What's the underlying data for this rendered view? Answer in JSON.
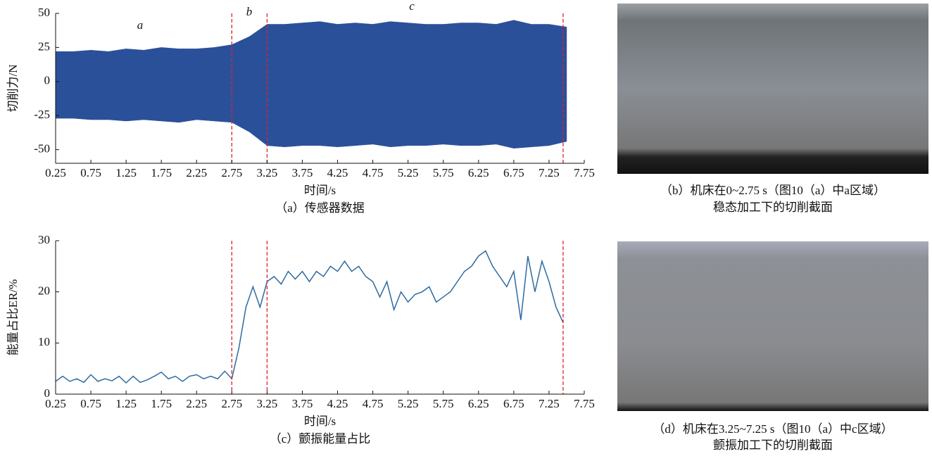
{
  "chart_data": [
    {
      "type": "area",
      "ylabel": "切削力/N",
      "xlabel": "时间/s",
      "caption": "（a）传感器数据",
      "annotations": [
        "a",
        "b",
        "c"
      ],
      "x": [
        0.25,
        0.5,
        0.75,
        1,
        1.25,
        1.5,
        1.75,
        2,
        2.25,
        2.5,
        2.75,
        3,
        3.25,
        3.5,
        3.75,
        4,
        4.25,
        4.5,
        4.75,
        5,
        5.25,
        5.5,
        5.75,
        6,
        6.25,
        6.5,
        6.75,
        7,
        7.25,
        7.5
      ],
      "series": [
        {
          "color": "#2b509a",
          "values": [
            22,
            22,
            23,
            22,
            24,
            23,
            25,
            24,
            24,
            25,
            27,
            33,
            42,
            42,
            43,
            44,
            42,
            43,
            42,
            44,
            43,
            42,
            42,
            43,
            43,
            42,
            45,
            42,
            42,
            40
          ]
        },
        {
          "color": "#2b509a",
          "values": [
            -27,
            -27,
            -28,
            -28,
            -29,
            -28,
            -29,
            -30,
            -28,
            -29,
            -30,
            -37,
            -47,
            -48,
            -47,
            -47,
            -48,
            -47,
            -46,
            -48,
            -47,
            -47,
            -46,
            -47,
            -47,
            -46,
            -49,
            -48,
            -47,
            -44
          ]
        }
      ],
      "vlines": [
        2.75,
        3.25,
        7.45
      ],
      "vline_color": "#e0202a",
      "xlim": [
        0.25,
        7.75
      ],
      "xticks": [
        0.25,
        0.75,
        1.25,
        1.75,
        2.25,
        2.75,
        3.25,
        3.75,
        4.25,
        4.75,
        5.25,
        5.75,
        6.25,
        6.75,
        7.25,
        7.75
      ],
      "ylim": [
        -60,
        50
      ],
      "yticks": [
        -50,
        -25,
        0,
        25,
        50
      ]
    },
    {
      "type": "line",
      "ylabel": "能量占比ER/%",
      "xlabel": "时间/s",
      "caption": "（c）颤振能量占比",
      "x": [
        0.25,
        0.35,
        0.45,
        0.55,
        0.65,
        0.75,
        0.85,
        0.95,
        1.05,
        1.15,
        1.25,
        1.35,
        1.45,
        1.55,
        1.65,
        1.75,
        1.85,
        1.95,
        2.05,
        2.15,
        2.25,
        2.35,
        2.45,
        2.55,
        2.65,
        2.75,
        2.85,
        2.95,
        3.05,
        3.15,
        3.25,
        3.35,
        3.45,
        3.55,
        3.65,
        3.75,
        3.85,
        3.95,
        4.05,
        4.15,
        4.25,
        4.35,
        4.45,
        4.55,
        4.65,
        4.75,
        4.85,
        4.95,
        5.05,
        5.15,
        5.25,
        5.35,
        5.45,
        5.55,
        5.65,
        5.75,
        5.85,
        5.95,
        6.05,
        6.15,
        6.25,
        6.35,
        6.45,
        6.55,
        6.65,
        6.75,
        6.85,
        6.95,
        7.05,
        7.15,
        7.25,
        7.35,
        7.45
      ],
      "series": [
        {
          "color": "#2e6aa0",
          "values": [
            2.5,
            3.5,
            2.5,
            3,
            2.3,
            3.8,
            2.5,
            3,
            2.6,
            3.5,
            2.2,
            3.5,
            2.3,
            2.8,
            3.5,
            4.3,
            3,
            3.5,
            2.5,
            3.5,
            3.8,
            3,
            3.5,
            3,
            4.5,
            3,
            9,
            17,
            21,
            17,
            22,
            23,
            21.5,
            24,
            22.5,
            24,
            22,
            24,
            23,
            25,
            24,
            26,
            24,
            25,
            23,
            22,
            19,
            22,
            16.5,
            20,
            18,
            19.5,
            20,
            21,
            18,
            19,
            20,
            22,
            24,
            25,
            27,
            28,
            25,
            23,
            21,
            24,
            14.5,
            27,
            20,
            26,
            22,
            17,
            14
          ]
        }
      ],
      "vlines": [
        2.75,
        3.25,
        7.45
      ],
      "vline_color": "#e0202a",
      "xlim": [
        0.25,
        7.75
      ],
      "xticks": [
        0.25,
        0.75,
        1.25,
        1.75,
        2.25,
        2.75,
        3.25,
        3.75,
        4.25,
        4.75,
        5.25,
        5.75,
        6.25,
        6.75,
        7.25,
        7.75
      ],
      "ylim": [
        0,
        30
      ],
      "yticks": [
        0,
        10,
        20,
        30
      ]
    }
  ],
  "photos": [
    {
      "caption": [
        "（b）机床在0~2.75 s（图10（a）中a区域）",
        "稳态加工下的切削截面"
      ]
    },
    {
      "caption": [
        "（d）机床在3.25~7.25 s（图10（a）中c区域）",
        "颤振加工下的切削截面"
      ]
    }
  ]
}
